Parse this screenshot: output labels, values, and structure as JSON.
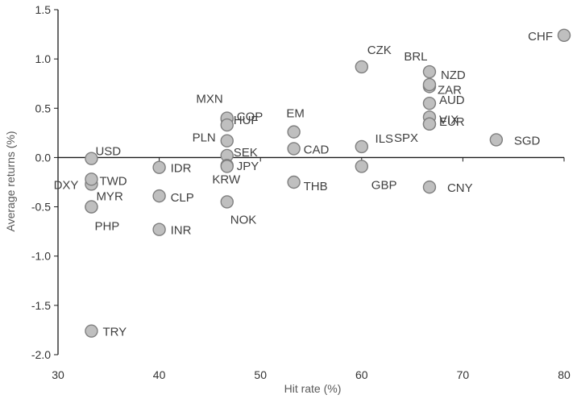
{
  "chart_data": {
    "type": "scatter",
    "title": "",
    "xlabel": "Hit rate (%)",
    "ylabel": "Average returns (%)",
    "xlim": [
      30,
      80
    ],
    "ylim": [
      -2.0,
      1.5
    ],
    "xticks": [
      "30",
      "40",
      "50",
      "60",
      "70",
      "80"
    ],
    "yticks": [
      "1.5",
      "1.0",
      "0.5",
      "0.0",
      "-0.5",
      "-1.0",
      "-1.5",
      "-2.0"
    ],
    "grid": false,
    "marker_color": "#bfbfbf",
    "marker_edge_color": "#7f7f7f",
    "points": [
      {
        "label": "USD",
        "x": 33.3,
        "y": -0.01
      },
      {
        "label": "DXY",
        "x": 33.3,
        "y": -0.27
      },
      {
        "label": "TWD",
        "x": 33.3,
        "y": -0.22
      },
      {
        "label": "MYR",
        "x": 33.3,
        "y": -0.5
      },
      {
        "label": "PHP",
        "x": 33.3,
        "y": -0.5
      },
      {
        "label": "TRY",
        "x": 33.3,
        "y": -1.76
      },
      {
        "label": "IDR",
        "x": 40.0,
        "y": -0.1
      },
      {
        "label": "CLP",
        "x": 40.0,
        "y": -0.39
      },
      {
        "label": "INR",
        "x": 40.0,
        "y": -0.73
      },
      {
        "label": "MXN",
        "x": 46.7,
        "y": 0.39
      },
      {
        "label": "COP",
        "x": 46.7,
        "y": 0.4
      },
      {
        "label": "HUF",
        "x": 46.7,
        "y": 0.33
      },
      {
        "label": "PLN",
        "x": 46.7,
        "y": 0.17
      },
      {
        "label": "SEK",
        "x": 46.7,
        "y": 0.02
      },
      {
        "label": "JPY",
        "x": 46.7,
        "y": -0.08
      },
      {
        "label": "KRW",
        "x": 46.7,
        "y": -0.09
      },
      {
        "label": "NOK",
        "x": 46.7,
        "y": -0.45
      },
      {
        "label": "EM",
        "x": 53.3,
        "y": 0.26
      },
      {
        "label": "CAD",
        "x": 53.3,
        "y": 0.09
      },
      {
        "label": "THB",
        "x": 53.3,
        "y": -0.25
      },
      {
        "label": "CZK",
        "x": 60.0,
        "y": 0.92
      },
      {
        "label": "ILS",
        "x": 60.0,
        "y": 0.11
      },
      {
        "label": "GBP",
        "x": 60.0,
        "y": -0.09
      },
      {
        "label": "BRL",
        "x": 66.7,
        "y": 0.87
      },
      {
        "label": "ZAR",
        "x": 66.7,
        "y": 0.72
      },
      {
        "label": "NZD",
        "x": 66.7,
        "y": 0.74
      },
      {
        "label": "AUD",
        "x": 66.7,
        "y": 0.55
      },
      {
        "label": "VIX",
        "x": 66.7,
        "y": 0.41
      },
      {
        "label": "EUR",
        "x": 66.7,
        "y": 0.34
      },
      {
        "label": "SPX",
        "x": 66.7,
        "y": 0.34
      },
      {
        "label": "CNY",
        "x": 66.7,
        "y": -0.3
      },
      {
        "label": "SGD",
        "x": 73.3,
        "y": 0.18
      },
      {
        "label": "CHF",
        "x": 80.0,
        "y": 1.24
      }
    ]
  }
}
